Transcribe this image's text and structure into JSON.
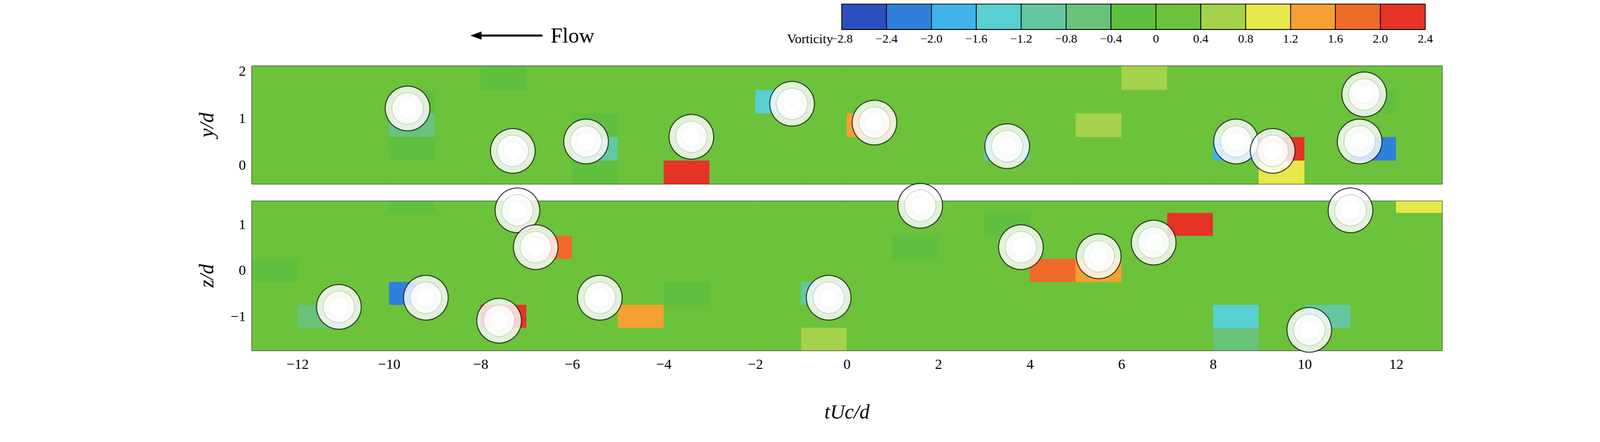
{
  "chart_data": [
    {
      "type": "heatmap",
      "ylabel": "y/d",
      "xlim": [
        -13,
        13
      ],
      "ylim": [
        -0.4,
        2.1
      ],
      "xticks": [
        {
          "value": -12,
          "label": "−12"
        },
        {
          "value": -10,
          "label": "−10"
        },
        {
          "value": -8,
          "label": "−8"
        },
        {
          "value": -6,
          "label": "−6"
        },
        {
          "value": -4,
          "label": "−4"
        },
        {
          "value": -2,
          "label": "−2"
        },
        0,
        2,
        4,
        6,
        8,
        10,
        12
      ],
      "yticks": [
        0,
        1,
        2
      ],
      "tick_labels": "y",
      "x_edges": [
        -13,
        -12,
        -11,
        -10,
        -9,
        -8,
        -7,
        -6,
        -5,
        -4,
        -3,
        -2,
        -1,
        0,
        1,
        2,
        3,
        4,
        5,
        6,
        7,
        8,
        9,
        10,
        11,
        12,
        13
      ],
      "y_edges": [
        -0.4,
        0.1,
        0.6,
        1.1,
        1.6,
        2.1
      ],
      "values": [
        [
          0.2,
          0.2,
          0.2,
          0.2,
          0.2,
          0.2,
          0.2,
          -0.4,
          0.2,
          2.0,
          0.2,
          0.2,
          0.2,
          0.2,
          0.2,
          0.2,
          0.2,
          0.2,
          0.2,
          0.2,
          0.2,
          0.2,
          0.8,
          0.2,
          0.2,
          0.2
        ],
        [
          0.2,
          0.2,
          0.2,
          -0.4,
          0.2,
          0.2,
          0.2,
          -1.2,
          0.2,
          0.2,
          0.2,
          0.2,
          0.2,
          0.2,
          0.2,
          0.2,
          -1.2,
          0.2,
          0.2,
          0.2,
          0.2,
          -2.0,
          2.0,
          0.2,
          -2.4,
          0.2
        ],
        [
          0.2,
          0.2,
          0.2,
          -0.8,
          0.2,
          0.2,
          0.2,
          -0.4,
          0.2,
          0.2,
          0.2,
          0.2,
          0.2,
          1.2,
          0.2,
          0.2,
          0.2,
          0.2,
          0.6,
          0.2,
          0.2,
          0.2,
          0.2,
          0.2,
          0.2,
          0.2
        ],
        [
          0.2,
          0.2,
          0.2,
          -0.4,
          0.2,
          0.2,
          0.2,
          0.2,
          0.2,
          0.2,
          0.2,
          -1.6,
          0.2,
          0.2,
          0.2,
          0.2,
          0.2,
          0.2,
          0.2,
          0.2,
          0.2,
          0.2,
          0.2,
          0.2,
          -0.4,
          0.2
        ],
        [
          0.2,
          0.2,
          0.2,
          0.2,
          0.2,
          -0.4,
          0.2,
          0.2,
          0.2,
          0.2,
          0.2,
          0.2,
          0.2,
          0.2,
          0.2,
          0.2,
          0.2,
          0.2,
          0.2,
          0.6,
          0.2,
          0.2,
          0.2,
          0.2,
          0.2,
          0.2
        ]
      ],
      "vortex_centers": [
        [
          -9.6,
          1.2
        ],
        [
          -7.3,
          0.3
        ],
        [
          -5.7,
          0.5
        ],
        [
          -3.4,
          0.6
        ],
        [
          -1.2,
          1.3
        ],
        [
          0.6,
          0.9
        ],
        [
          3.5,
          0.4
        ],
        [
          8.5,
          0.5
        ],
        [
          9.3,
          0.3
        ],
        [
          11.2,
          0.5
        ],
        [
          11.3,
          1.5
        ]
      ]
    },
    {
      "type": "heatmap",
      "xlabel": "tUc/d",
      "ylabel": "z/d",
      "xlim": [
        -13,
        13
      ],
      "ylim": [
        -1.75,
        1.5
      ],
      "xticks": [
        {
          "value": -12,
          "label": "−12"
        },
        {
          "value": -10,
          "label": "−10"
        },
        {
          "value": -8,
          "label": "−8"
        },
        {
          "value": -6,
          "label": "−6"
        },
        {
          "value": -4,
          "label": "−4"
        },
        {
          "value": -2,
          "label": "−2"
        },
        0,
        2,
        4,
        6,
        8,
        10,
        12
      ],
      "yticks": [
        {
          "value": -1,
          "label": "−1"
        },
        0,
        1
      ],
      "x_edges": [
        -13,
        -12,
        -11,
        -10,
        -9,
        -8,
        -7,
        -6,
        -5,
        -4,
        -3,
        -2,
        -1,
        0,
        1,
        2,
        3,
        4,
        5,
        6,
        7,
        8,
        9,
        10,
        11,
        12,
        13
      ],
      "y_edges": [
        -1.75,
        -1.25,
        -0.75,
        -0.25,
        0.25,
        0.75,
        1.25,
        1.5
      ],
      "values": [
        [
          0.2,
          0.2,
          0.2,
          0.2,
          0.2,
          0.2,
          0.2,
          0.2,
          0.2,
          0.2,
          0.2,
          0.2,
          0.6,
          0.2,
          0.2,
          0.2,
          0.2,
          0.2,
          0.2,
          0.2,
          0.2,
          -0.8,
          0.2,
          0.2,
          0.2,
          0.2
        ],
        [
          0.2,
          -0.8,
          0.2,
          0.2,
          0.2,
          2.4,
          0.2,
          0.2,
          1.2,
          0.2,
          0.2,
          0.2,
          0.2,
          0.2,
          0.2,
          0.2,
          0.2,
          0.2,
          0.2,
          0.2,
          0.2,
          -1.6,
          0.2,
          -1.2,
          0.2,
          0.2
        ],
        [
          0.2,
          0.2,
          0.2,
          -2.4,
          0.2,
          0.2,
          0.2,
          0.2,
          0.2,
          -0.4,
          0.2,
          0.2,
          -1.2,
          0.2,
          0.2,
          0.2,
          0.2,
          0.2,
          0.2,
          0.2,
          0.2,
          0.2,
          0.2,
          0.2,
          0.2,
          0.2
        ],
        [
          -0.4,
          0.2,
          0.2,
          0.2,
          0.2,
          0.2,
          0.2,
          0.2,
          0.2,
          0.2,
          0.2,
          0.2,
          0.2,
          0.2,
          0.2,
          0.2,
          0.2,
          1.6,
          1.2,
          0.2,
          0.2,
          0.2,
          0.2,
          0.2,
          0.2,
          0.2
        ],
        [
          0.2,
          0.2,
          0.2,
          0.2,
          0.2,
          0.2,
          1.6,
          0.2,
          0.2,
          0.2,
          0.2,
          0.2,
          0.2,
          0.2,
          -0.4,
          0.2,
          0.2,
          0.2,
          0.2,
          0.2,
          0.2,
          0.2,
          0.2,
          0.2,
          0.2,
          0.2
        ],
        [
          0.2,
          0.2,
          0.2,
          0.2,
          0.2,
          0.2,
          0.2,
          0.2,
          0.2,
          0.2,
          0.2,
          0.2,
          0.2,
          0.2,
          0.2,
          0.2,
          -0.4,
          0.2,
          0.2,
          0.2,
          2.0,
          0.2,
          0.2,
          0.2,
          0.2,
          0.2
        ],
        [
          0.2,
          0.2,
          0.2,
          -0.4,
          0.2,
          0.2,
          0.2,
          0.2,
          0.2,
          0.2,
          0.2,
          0.2,
          0.2,
          0.2,
          0.2,
          0.2,
          0.2,
          0.2,
          0.2,
          0.2,
          0.2,
          0.2,
          0.2,
          0.2,
          0.2,
          0.8
        ]
      ],
      "vortex_centers": [
        [
          -11.1,
          -0.8
        ],
        [
          -9.2,
          -0.6
        ],
        [
          -7.6,
          -1.1
        ],
        [
          -7.2,
          1.3
        ],
        [
          -6.8,
          0.5
        ],
        [
          -5.4,
          -0.6
        ],
        [
          -0.4,
          -0.6
        ],
        [
          1.6,
          1.4
        ],
        [
          3.8,
          0.5
        ],
        [
          5.5,
          0.3
        ],
        [
          6.7,
          0.6
        ],
        [
          10.1,
          -1.3
        ],
        [
          11.0,
          1.3
        ]
      ]
    }
  ],
  "colorbar": {
    "label": "Vorticity",
    "range": [
      -2.8,
      2.4
    ],
    "ticks": [
      {
        "value": -2.8,
        "label": "−2.8"
      },
      {
        "value": -2.4,
        "label": "−2.4"
      },
      {
        "value": -2.0,
        "label": "−2.0"
      },
      {
        "value": -1.6,
        "label": "−1.6"
      },
      {
        "value": -1.2,
        "label": "−1.2"
      },
      {
        "value": -0.8,
        "label": "−0.8"
      },
      {
        "value": -0.4,
        "label": "−0.4"
      },
      0,
      0.4,
      0.8,
      1.2,
      1.6,
      {
        "value": 2.0,
        "label": "2.0"
      },
      2.4
    ],
    "colors": [
      "#2b4fbf",
      "#2f7fdc",
      "#3fb3ea",
      "#58cfd0",
      "#63c8a0",
      "#69c27a",
      "#5fbf3f",
      "#6cc23a",
      "#a4d24a",
      "#e6e84a",
      "#f5a030",
      "#f06a2a",
      "#e53326"
    ]
  },
  "annotation": "Flow"
}
